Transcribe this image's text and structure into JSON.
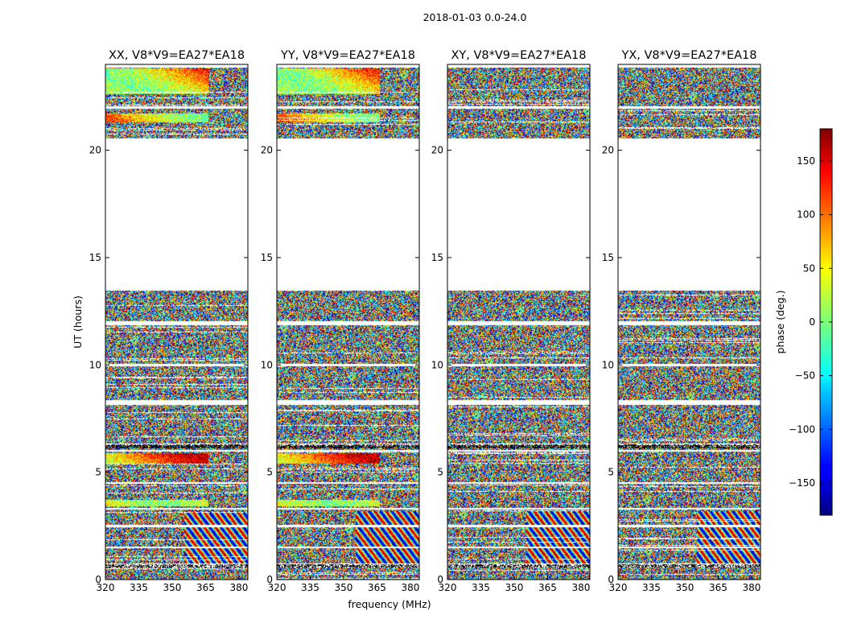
{
  "figure": {
    "suptitle": "2018-01-03 0.0-24.0"
  },
  "chart_data": {
    "type": "heatmap",
    "suptitle": "2018-01-03 0.0-24.0",
    "xlabel": "frequency (MHz)",
    "ylabel": "UT (hours)",
    "xlim": [
      320,
      384
    ],
    "ylim": [
      0,
      24
    ],
    "xticks": [
      320,
      335,
      350,
      365,
      380
    ],
    "yticks": [
      0,
      5,
      10,
      15,
      20
    ],
    "colorbar": {
      "label": "phase (deg.)",
      "range": [
        -180,
        180
      ],
      "ticks": [
        -150,
        -100,
        -50,
        0,
        50,
        100,
        150
      ],
      "colormap": "jet"
    },
    "panels": [
      {
        "title": "XX, V8*V9=EA27*EA18",
        "pol": "XX"
      },
      {
        "title": "YY, V8*V9=EA27*EA18",
        "pol": "YY"
      },
      {
        "title": "XY, V8*V9=EA27*EA18",
        "pol": "XY"
      },
      {
        "title": "YX, V8*V9=EA27*EA18",
        "pol": "YX"
      }
    ],
    "data_bands_ut": [
      [
        0.0,
        0.55
      ],
      [
        0.75,
        1.45
      ],
      [
        1.55,
        2.45
      ],
      [
        2.55,
        3.25
      ],
      [
        3.35,
        4.45
      ],
      [
        4.55,
        5.95
      ],
      [
        6.05,
        6.25
      ],
      [
        6.35,
        8.15
      ],
      [
        8.35,
        9.95
      ],
      [
        10.05,
        11.85
      ],
      [
        12.05,
        13.45
      ],
      [
        20.55,
        21.95
      ],
      [
        22.05,
        23.85
      ]
    ],
    "coherent_bands_ut": {
      "XX": [
        [
          22.6,
          23.8
        ],
        [
          21.3,
          21.7
        ],
        [
          5.4,
          5.9
        ],
        [
          3.4,
          3.7
        ]
      ],
      "YY": [
        [
          22.6,
          23.8
        ],
        [
          21.3,
          21.7
        ],
        [
          5.4,
          5.9
        ],
        [
          3.4,
          3.7
        ]
      ]
    }
  }
}
